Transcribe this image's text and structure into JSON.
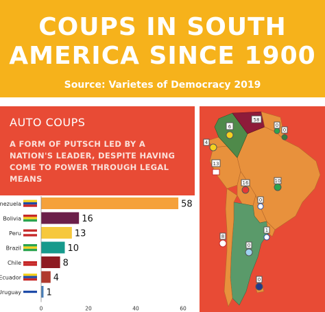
{
  "header": {
    "title_line1": "COUPS IN  SOUTH",
    "title_line2": "AMERICA SINCE 1900",
    "source": "Source: Varietes of Democracy 2019"
  },
  "panel": {
    "title": "AUTO COUPS",
    "description": "A FORM OF PUTSCH LED BY A NATION'S LEADER, DESPITE HAVING COME TO POWER THROUGH LEGAL MEANS"
  },
  "chart_data": {
    "type": "bar",
    "orientation": "horizontal",
    "categories": [
      "Venezuela",
      "Bolivia",
      "Peru",
      "Brazil",
      "Chile",
      "Ecuador",
      "Uruguay"
    ],
    "values": [
      58,
      16,
      13,
      10,
      8,
      4,
      1
    ],
    "bar_colors": [
      "#f5a13a",
      "#6b1f4a",
      "#f6c83d",
      "#169a8c",
      "#8e1b22",
      "#b03a2e",
      "#4a7fb8"
    ],
    "xlim": [
      0,
      60
    ],
    "xticks": [
      "0",
      "20",
      "40",
      "60"
    ],
    "grid": false
  },
  "map": {
    "labels": [
      {
        "country": "Venezuela",
        "value": "58"
      },
      {
        "country": "Colombia",
        "value": "6"
      },
      {
        "country": "Guyana",
        "value": "0"
      },
      {
        "country": "Suriname",
        "value": "0"
      },
      {
        "country": "Ecuador",
        "value": "4"
      },
      {
        "country": "Peru",
        "value": "13"
      },
      {
        "country": "Brazil",
        "value": "10"
      },
      {
        "country": "Bolivia",
        "value": "16"
      },
      {
        "country": "Paraguay",
        "value": "0"
      },
      {
        "country": "Chile",
        "value": "8"
      },
      {
        "country": "Uruguay",
        "value": "1"
      },
      {
        "country": "Argentina",
        "value": "0"
      },
      {
        "country": "Falklands",
        "value": "0"
      }
    ],
    "colors": {
      "sea": "#e84b35",
      "land_default": "#e8913c",
      "venezuela": "#8e1b3a",
      "colombia": "#4f8a4a",
      "argentina": "#5a9a6a"
    }
  }
}
